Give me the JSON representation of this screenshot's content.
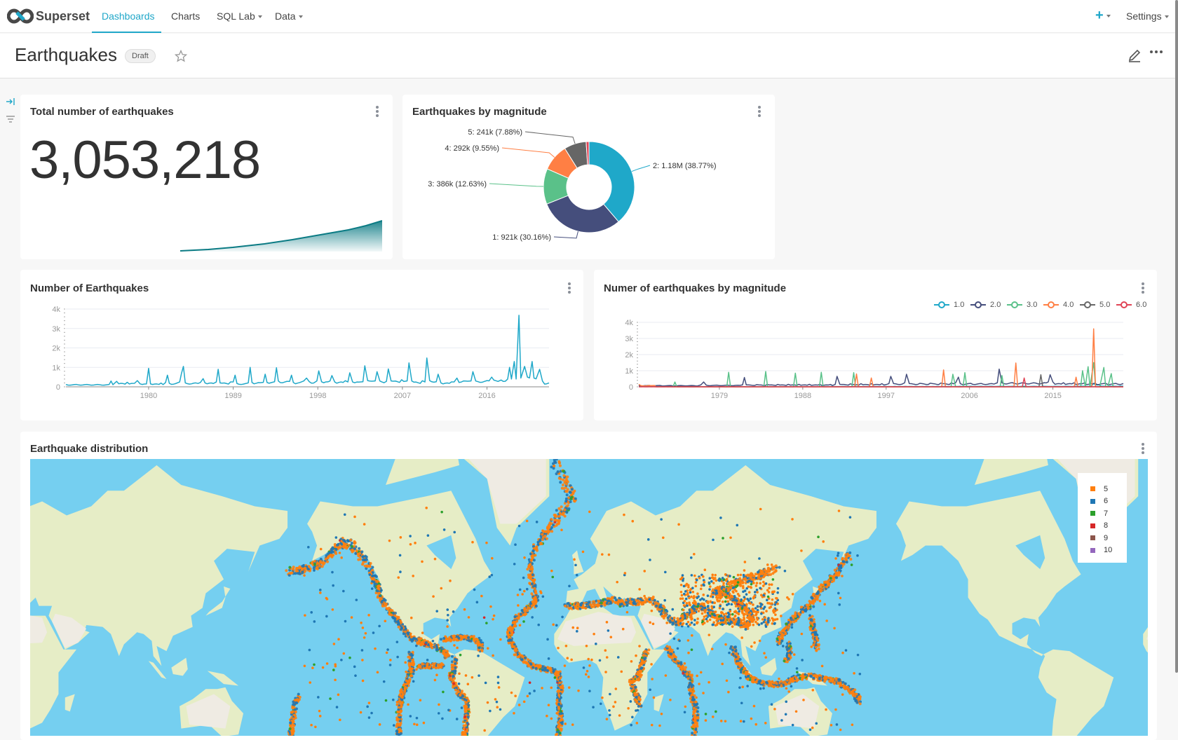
{
  "navbar": {
    "brand": "Superset",
    "items": [
      {
        "label": "Dashboards",
        "active": true
      },
      {
        "label": "Charts"
      },
      {
        "label": "SQL Lab",
        "dropdown": true
      },
      {
        "label": "Data",
        "dropdown": true
      }
    ],
    "settings_label": "Settings",
    "accent_color": "#20a7c9"
  },
  "dashboard": {
    "title": "Earthquakes",
    "status_badge": "Draft"
  },
  "charts": {
    "big_number": {
      "title": "Total number of earthquakes",
      "value": "3,053,218",
      "trend_color": "#0b7b84"
    },
    "pie": {
      "title": "Earthquakes by magnitude"
    },
    "line_total": {
      "title": "Number of Earthquakes"
    },
    "line_by_mag": {
      "title": "Numer of earthquakes by magnitude"
    },
    "map": {
      "title": "Earthquake distribution"
    }
  },
  "chart_data": [
    {
      "type": "pie",
      "title": "Earthquakes by magnitude",
      "donut": true,
      "slices": [
        {
          "category": "2",
          "value": 1180000,
          "percent": 38.77,
          "label": "2: 1.18M (38.77%)",
          "color": "#1FA8C9"
        },
        {
          "category": "1",
          "value": 921000,
          "percent": 30.16,
          "label": "1: 921k (30.16%)",
          "color": "#454E7C"
        },
        {
          "category": "3",
          "value": 386000,
          "percent": 12.63,
          "label": "3: 386k (12.63%)",
          "color": "#5AC189"
        },
        {
          "category": "4",
          "value": 292000,
          "percent": 9.55,
          "label": "4: 292k (9.55%)",
          "color": "#FF7F44"
        },
        {
          "category": "5",
          "value": 241000,
          "percent": 7.88,
          "label": "5: 241k (7.88%)",
          "color": "#666666"
        },
        {
          "category": "6",
          "value": 31000,
          "percent": 1.01,
          "label": "",
          "color": "#E04355"
        }
      ]
    },
    {
      "type": "line",
      "title": "Number of Earthquakes",
      "x_ticks": [
        "1980",
        "1989",
        "1998",
        "2007",
        "2016"
      ],
      "y_ticks": [
        "0",
        "1k",
        "2k",
        "3k",
        "4k"
      ],
      "xlim": [
        1971.2,
        2022.6
      ],
      "ylim": [
        0,
        4000
      ],
      "grid": true,
      "color": "#1FA8C9",
      "points": [
        [
          1971.2,
          120
        ],
        [
          1975.8,
          120
        ],
        [
          1976,
          300
        ],
        [
          1976.2,
          110
        ],
        [
          1976.6,
          280
        ],
        [
          1978.5,
          180
        ],
        [
          1978.8,
          320
        ],
        [
          1979.1,
          150
        ],
        [
          1980,
          950
        ],
        [
          1980.2,
          150
        ],
        [
          1981.8,
          220
        ],
        [
          1982,
          600
        ],
        [
          1982.2,
          180
        ],
        [
          1983.3,
          250
        ],
        [
          1983.5,
          700
        ],
        [
          1983.7,
          1050
        ],
        [
          1983.9,
          200
        ],
        [
          1985.5,
          220
        ],
        [
          1985.8,
          420
        ],
        [
          1986,
          200
        ],
        [
          1987.2,
          250
        ],
        [
          1987.4,
          900
        ],
        [
          1987.6,
          200
        ],
        [
          1989,
          250
        ],
        [
          1989.2,
          600
        ],
        [
          1989.4,
          170
        ],
        [
          1990.6,
          200
        ],
        [
          1990.8,
          1000
        ],
        [
          1991,
          220
        ],
        [
          1992.2,
          230
        ],
        [
          1992.4,
          650
        ],
        [
          1992.6,
          220
        ],
        [
          1993.4,
          260
        ],
        [
          1993.6,
          980
        ],
        [
          1993.8,
          300
        ],
        [
          1995,
          280
        ],
        [
          1995.2,
          600
        ],
        [
          1995.4,
          220
        ],
        [
          1996.5,
          300
        ],
        [
          1996.8,
          450
        ],
        [
          1997.1,
          260
        ],
        [
          1997.9,
          300
        ],
        [
          1998.1,
          820
        ],
        [
          1998.4,
          260
        ],
        [
          1999.3,
          300
        ],
        [
          1999.5,
          580
        ],
        [
          1999.8,
          250
        ],
        [
          2001.2,
          250
        ],
        [
          2001.4,
          720
        ],
        [
          2001.7,
          250
        ],
        [
          2002.8,
          260
        ],
        [
          2003,
          1080
        ],
        [
          2003.3,
          320
        ],
        [
          2004.1,
          300
        ],
        [
          2004.3,
          780
        ],
        [
          2004.6,
          300
        ],
        [
          2005.3,
          280
        ],
        [
          2005.5,
          920
        ],
        [
          2005.8,
          300
        ],
        [
          2007.5,
          300
        ],
        [
          2007.7,
          1230
        ],
        [
          2008,
          300
        ],
        [
          2009.4,
          250
        ],
        [
          2009.6,
          1480
        ],
        [
          2009.9,
          320
        ],
        [
          2010.6,
          260
        ],
        [
          2010.8,
          650
        ],
        [
          2011.1,
          200
        ],
        [
          2012.5,
          250
        ],
        [
          2012.8,
          450
        ],
        [
          2013.5,
          300
        ],
        [
          2014.3,
          300
        ],
        [
          2014.5,
          780
        ],
        [
          2014.8,
          300
        ],
        [
          2016,
          320
        ],
        [
          2016.5,
          500
        ],
        [
          2017.5,
          350
        ],
        [
          2018.2,
          400
        ],
        [
          2018.4,
          1000
        ],
        [
          2018.6,
          400
        ],
        [
          2018.9,
          1300
        ],
        [
          2019.1,
          400
        ],
        [
          2019.4,
          3680
        ],
        [
          2019.6,
          450
        ],
        [
          2020,
          1050
        ],
        [
          2020.3,
          500
        ],
        [
          2020.8,
          1300
        ],
        [
          2021,
          450
        ],
        [
          2021.6,
          900
        ],
        [
          2021.9,
          300
        ],
        [
          2022.6,
          200
        ]
      ]
    },
    {
      "type": "line",
      "title": "Numer of earthquakes by magnitude",
      "x_ticks": [
        "1979",
        "1988",
        "1997",
        "2006",
        "2015"
      ],
      "y_ticks": [
        "0",
        "1k",
        "2k",
        "3k",
        "4k"
      ],
      "xlim": [
        1970.3,
        2022.6
      ],
      "ylim": [
        0,
        4000
      ],
      "grid": true,
      "legend_position": "top-right",
      "series": [
        {
          "name": "1.0",
          "color": "#1FA8C9",
          "points": [
            [
              1970.3,
              10
            ],
            [
              1990,
              20
            ],
            [
              2005,
              30
            ],
            [
              2018,
              40
            ],
            [
              2019.4,
              200
            ],
            [
              2020,
              120
            ],
            [
              2022.6,
              40
            ]
          ]
        },
        {
          "name": "2.0",
          "color": "#454E7C",
          "points": [
            [
              1970.3,
              80
            ],
            [
              1977,
              120
            ],
            [
              1977.3,
              300
            ],
            [
              1977.6,
              100
            ],
            [
              1981.5,
              120
            ],
            [
              1981.7,
              580
            ],
            [
              1981.9,
              120
            ],
            [
              1991.5,
              150
            ],
            [
              1991.7,
              650
            ],
            [
              1992,
              150
            ],
            [
              1997.3,
              200
            ],
            [
              1997.5,
              650
            ],
            [
              1997.8,
              200
            ],
            [
              1999,
              250
            ],
            [
              1999.2,
              780
            ],
            [
              1999.5,
              200
            ],
            [
              2004.5,
              250
            ],
            [
              2004.8,
              600
            ],
            [
              2005,
              200
            ],
            [
              2009,
              250
            ],
            [
              2009.2,
              1100
            ],
            [
              2009.5,
              250
            ],
            [
              2014.5,
              300
            ],
            [
              2014.7,
              750
            ],
            [
              2015,
              300
            ],
            [
              2022.6,
              200
            ]
          ]
        },
        {
          "name": "3.0",
          "color": "#5AC189",
          "points": [
            [
              1974,
              0
            ],
            [
              1974.2,
              300
            ],
            [
              1974.4,
              0
            ],
            [
              1979.8,
              0
            ],
            [
              1980,
              900
            ],
            [
              1980.2,
              0
            ],
            [
              1983.8,
              0
            ],
            [
              1984,
              950
            ],
            [
              1984.2,
              0
            ],
            [
              1987,
              0
            ],
            [
              1987.2,
              850
            ],
            [
              1987.4,
              0
            ],
            [
              1989.8,
              0
            ],
            [
              1990,
              900
            ],
            [
              1990.2,
              0
            ],
            [
              1993.3,
              0
            ],
            [
              1993.5,
              880
            ],
            [
              1993.7,
              0
            ],
            [
              2004,
              0
            ],
            [
              2004.2,
              780
            ],
            [
              2004.5,
              0
            ],
            [
              2005.3,
              0
            ],
            [
              2005.5,
              880
            ],
            [
              2005.7,
              0
            ],
            [
              2009.3,
              0
            ],
            [
              2009.5,
              700
            ],
            [
              2009.7,
              0
            ],
            [
              2018,
              0
            ],
            [
              2018.2,
              1000
            ],
            [
              2018.5,
              0
            ],
            [
              2018.8,
              1250
            ],
            [
              2019,
              0
            ],
            [
              2019.4,
              1500
            ],
            [
              2019.6,
              0
            ],
            [
              2020.5,
              1200
            ],
            [
              2020.7,
              0
            ],
            [
              2021.3,
              820
            ],
            [
              2021.5,
              0
            ],
            [
              2022.6,
              0
            ]
          ]
        },
        {
          "name": "4.0",
          "color": "#FF7F44",
          "points": [
            [
              1970.3,
              150
            ],
            [
              1972,
              80
            ],
            [
              1972.2,
              0
            ],
            [
              1993.6,
              0
            ],
            [
              1993.8,
              800
            ],
            [
              1994,
              0
            ],
            [
              1995.2,
              0
            ],
            [
              1995.4,
              550
            ],
            [
              1995.6,
              0
            ],
            [
              2003,
              0
            ],
            [
              2003.2,
              1050
            ],
            [
              2003.4,
              0
            ],
            [
              2010.8,
              0
            ],
            [
              2011,
              1480
            ],
            [
              2011.2,
              0
            ],
            [
              2017.3,
              0
            ],
            [
              2017.5,
              600
            ],
            [
              2017.7,
              0
            ],
            [
              2019.2,
              0
            ],
            [
              2019.4,
              3600
            ],
            [
              2019.6,
              0
            ],
            [
              2022.6,
              0
            ]
          ]
        },
        {
          "name": "5.0",
          "color": "#666666",
          "points": [
            [
              1970.3,
              10
            ],
            [
              2013.5,
              10
            ],
            [
              2013.7,
              750
            ],
            [
              2013.9,
              10
            ],
            [
              2022.6,
              10
            ]
          ]
        },
        {
          "name": "6.0",
          "color": "#E04355",
          "points": [
            [
              1970.3,
              0
            ],
            [
              2011.7,
              0
            ],
            [
              2011.9,
              550
            ],
            [
              2012.1,
              0
            ],
            [
              2022.6,
              0
            ]
          ]
        }
      ]
    },
    {
      "type": "scatter",
      "title": "Earthquake distribution",
      "legend": [
        {
          "label": "5",
          "color": "#ff7f0e"
        },
        {
          "label": "6",
          "color": "#1f77b4"
        },
        {
          "label": "7",
          "color": "#2ca02c"
        },
        {
          "label": "8",
          "color": "#d62728"
        },
        {
          "label": "9",
          "color": "#8c564b"
        },
        {
          "label": "10",
          "color": "#9467bd"
        }
      ],
      "ocean_color": "#75cff0",
      "land_color": "#e6edc6"
    }
  ]
}
